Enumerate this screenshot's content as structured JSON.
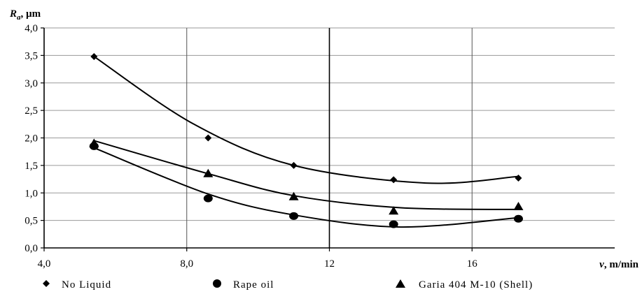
{
  "chart_data": {
    "type": "scatter",
    "title": "",
    "xlabel": {
      "symbol": "v",
      "unit": ", m/min"
    },
    "ylabel": {
      "symbol": "R",
      "subscript": "a",
      "unit": ", µm"
    },
    "xlim": [
      4,
      20
    ],
    "ylim": [
      0,
      4
    ],
    "x_ticks": [
      {
        "value": 4,
        "label": "4,0"
      },
      {
        "value": 8,
        "label": "8,0"
      },
      {
        "value": 12,
        "label": "12"
      },
      {
        "value": 16,
        "label": "16"
      }
    ],
    "y_ticks": [
      {
        "value": 0.0,
        "label": "0,0"
      },
      {
        "value": 0.5,
        "label": "0,5"
      },
      {
        "value": 1.0,
        "label": "1,0"
      },
      {
        "value": 1.5,
        "label": "1,5"
      },
      {
        "value": 2.0,
        "label": "2,0"
      },
      {
        "value": 2.5,
        "label": "2,5"
      },
      {
        "value": 3.0,
        "label": "3,0"
      },
      {
        "value": 3.5,
        "label": "3,5"
      },
      {
        "value": 4.0,
        "label": "4,0"
      }
    ],
    "grid": {
      "vertical": [
        8,
        12,
        16
      ],
      "horizontal": true
    },
    "legend_placement": "bottom",
    "series": [
      {
        "name": "No Liquid",
        "marker": "diamond",
        "points": [
          [
            5.4,
            3.48
          ],
          [
            8.6,
            2.0
          ],
          [
            11.0,
            1.5
          ],
          [
            13.8,
            1.24
          ],
          [
            17.3,
            1.27
          ]
        ],
        "trend": [
          [
            5.4,
            3.48
          ],
          [
            8.2,
            2.25
          ],
          [
            11.0,
            1.5
          ],
          [
            14.7,
            1.18
          ],
          [
            17.3,
            1.3
          ]
        ]
      },
      {
        "name": "Rape oil",
        "marker": "circle",
        "points": [
          [
            5.4,
            1.85
          ],
          [
            8.6,
            0.9
          ],
          [
            11.0,
            0.58
          ],
          [
            13.8,
            0.43
          ],
          [
            17.3,
            0.53
          ]
        ],
        "trend": [
          [
            5.4,
            1.82
          ],
          [
            8.6,
            0.98
          ],
          [
            11.0,
            0.6
          ],
          [
            14.0,
            0.38
          ],
          [
            17.3,
            0.55
          ]
        ]
      },
      {
        "name": "Garia 404 M-10 (Shell)",
        "marker": "triangle",
        "points": [
          [
            5.4,
            1.9
          ],
          [
            8.6,
            1.35
          ],
          [
            11.0,
            0.93
          ],
          [
            13.8,
            0.67
          ],
          [
            17.3,
            0.75
          ]
        ],
        "trend": [
          [
            5.4,
            1.95
          ],
          [
            8.6,
            1.35
          ],
          [
            11.0,
            0.95
          ],
          [
            14.0,
            0.73
          ],
          [
            17.3,
            0.7
          ]
        ]
      }
    ]
  }
}
